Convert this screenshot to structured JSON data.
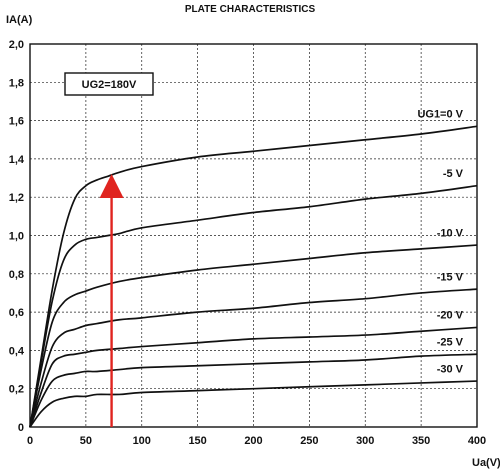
{
  "chart_data": {
    "type": "line",
    "title": "PLATE CHARACTERISTICS",
    "xlabel": "Ua(V)",
    "ylabel": "IA(A)",
    "xlim": [
      0,
      400
    ],
    "ylim": [
      0,
      2.0
    ],
    "grid": true,
    "x_ticks": [
      "0",
      "50",
      "100",
      "150",
      "200",
      "250",
      "300",
      "350",
      "400"
    ],
    "y_ticks": [
      "0",
      "0,2",
      "0,4",
      "0,6",
      "0,8",
      "1,0",
      "1,2",
      "1,4",
      "1,6",
      "1,8",
      "2,0"
    ],
    "parameter_box": "UG2=180V",
    "series": [
      {
        "name": "UG1=0 V",
        "x": [
          0,
          10,
          20,
          30,
          40,
          50,
          60,
          70,
          80,
          100,
          150,
          200,
          250,
          300,
          350,
          400
        ],
        "y": [
          0,
          0.36,
          0.72,
          1.01,
          1.19,
          1.26,
          1.29,
          1.31,
          1.33,
          1.36,
          1.41,
          1.44,
          1.47,
          1.5,
          1.53,
          1.57
        ]
      },
      {
        "name": "-5 V",
        "x": [
          0,
          10,
          20,
          30,
          40,
          50,
          60,
          70,
          80,
          100,
          150,
          200,
          250,
          300,
          350,
          400
        ],
        "y": [
          0,
          0.34,
          0.66,
          0.87,
          0.95,
          0.98,
          0.99,
          1.0,
          1.01,
          1.04,
          1.08,
          1.12,
          1.15,
          1.19,
          1.22,
          1.26
        ]
      },
      {
        "name": "-10 V",
        "x": [
          0,
          10,
          20,
          30,
          40,
          50,
          60,
          80,
          100,
          150,
          200,
          250,
          300,
          350,
          400
        ],
        "y": [
          0,
          0.3,
          0.55,
          0.65,
          0.69,
          0.71,
          0.73,
          0.76,
          0.78,
          0.82,
          0.85,
          0.88,
          0.91,
          0.93,
          0.95
        ]
      },
      {
        "name": "-15 V",
        "x": [
          0,
          10,
          20,
          30,
          40,
          50,
          60,
          80,
          100,
          150,
          200,
          250,
          300,
          350,
          400
        ],
        "y": [
          0,
          0.23,
          0.42,
          0.49,
          0.51,
          0.53,
          0.54,
          0.56,
          0.57,
          0.6,
          0.62,
          0.65,
          0.67,
          0.7,
          0.72
        ]
      },
      {
        "name": "-20 V",
        "x": [
          0,
          10,
          20,
          30,
          40,
          50,
          60,
          80,
          100,
          150,
          200,
          250,
          300,
          350,
          400
        ],
        "y": [
          0,
          0.18,
          0.33,
          0.37,
          0.38,
          0.39,
          0.4,
          0.41,
          0.42,
          0.44,
          0.46,
          0.47,
          0.48,
          0.5,
          0.52
        ]
      },
      {
        "name": "-25 V",
        "x": [
          0,
          10,
          20,
          30,
          40,
          50,
          60,
          80,
          100,
          150,
          200,
          250,
          300,
          350,
          400
        ],
        "y": [
          0,
          0.14,
          0.24,
          0.27,
          0.28,
          0.29,
          0.29,
          0.3,
          0.31,
          0.32,
          0.33,
          0.34,
          0.35,
          0.37,
          0.38
        ]
      },
      {
        "name": "-30 V",
        "x": [
          0,
          10,
          20,
          30,
          40,
          50,
          60,
          80,
          100,
          150,
          200,
          250,
          300,
          350,
          400
        ],
        "y": [
          0,
          0.08,
          0.13,
          0.15,
          0.16,
          0.16,
          0.17,
          0.17,
          0.18,
          0.19,
          0.2,
          0.21,
          0.22,
          0.23,
          0.24
        ]
      }
    ],
    "annotations": [
      {
        "type": "arrow",
        "color": "#e0241f",
        "x": 73,
        "y_from": 0,
        "y_to": 1.3
      }
    ]
  },
  "colors": {
    "curve": "#111111",
    "arrow": "#e0241f",
    "grid": "#222222"
  }
}
